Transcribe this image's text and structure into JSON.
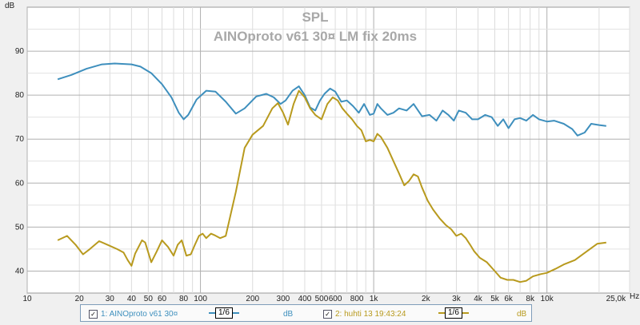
{
  "chart_data": {
    "type": "line",
    "title": "SPL",
    "subtitle": "AINOproto v61 30¤ LM fix 20ms",
    "ylabel": "dB",
    "xunit": "Hz",
    "xscale": "log",
    "xlim": [
      10,
      30000
    ],
    "ylim": [
      35,
      100
    ],
    "grid": true,
    "yticks": [
      "40",
      "50",
      "60",
      "70",
      "80",
      "90"
    ],
    "xticks": [
      {
        "v": 10,
        "label": "10"
      },
      {
        "v": 20,
        "label": "20"
      },
      {
        "v": 30,
        "label": "30"
      },
      {
        "v": 40,
        "label": "40"
      },
      {
        "v": 50,
        "label": "50"
      },
      {
        "v": 60,
        "label": "60"
      },
      {
        "v": 80,
        "label": "80"
      },
      {
        "v": 100,
        "label": "100"
      },
      {
        "v": 200,
        "label": "200"
      },
      {
        "v": 300,
        "label": "300"
      },
      {
        "v": 400,
        "label": "400"
      },
      {
        "v": 500,
        "label": "500"
      },
      {
        "v": 600,
        "label": "600"
      },
      {
        "v": 800,
        "label": "800"
      },
      {
        "v": 1000,
        "label": "1k"
      },
      {
        "v": 2000,
        "label": "2k"
      },
      {
        "v": 3000,
        "label": "3k"
      },
      {
        "v": 4000,
        "label": "4k"
      },
      {
        "v": 5000,
        "label": "5k"
      },
      {
        "v": 6000,
        "label": "6k"
      },
      {
        "v": 8000,
        "label": "8k"
      },
      {
        "v": 10000,
        "label": "10k"
      },
      {
        "v": 25000,
        "label": "25,0k"
      }
    ],
    "series": [
      {
        "name": "1: AINOproto v61 30¤",
        "color": "#3e8fbd",
        "points": [
          [
            15,
            83.6
          ],
          [
            18,
            84.6
          ],
          [
            22,
            86
          ],
          [
            27,
            87
          ],
          [
            32,
            87.2
          ],
          [
            40,
            87
          ],
          [
            45,
            86.5
          ],
          [
            52,
            85
          ],
          [
            60,
            82.5
          ],
          [
            68,
            79.5
          ],
          [
            75,
            76
          ],
          [
            80,
            74.5
          ],
          [
            85,
            75.5
          ],
          [
            95,
            79
          ],
          [
            108,
            81
          ],
          [
            122,
            80.8
          ],
          [
            140,
            78.5
          ],
          [
            160,
            75.8
          ],
          [
            180,
            77
          ],
          [
            210,
            79.7
          ],
          [
            240,
            80.3
          ],
          [
            265,
            79.5
          ],
          [
            290,
            78
          ],
          [
            310,
            78.8
          ],
          [
            340,
            81
          ],
          [
            370,
            82
          ],
          [
            400,
            80
          ],
          [
            430,
            77.2
          ],
          [
            460,
            76.5
          ],
          [
            490,
            78.8
          ],
          [
            520,
            80.3
          ],
          [
            560,
            81.5
          ],
          [
            600,
            80.8
          ],
          [
            650,
            78.5
          ],
          [
            700,
            78.8
          ],
          [
            760,
            77.5
          ],
          [
            820,
            76
          ],
          [
            880,
            78
          ],
          [
            950,
            75.5
          ],
          [
            1000,
            75.8
          ],
          [
            1050,
            78
          ],
          [
            1100,
            77
          ],
          [
            1200,
            75.5
          ],
          [
            1300,
            76
          ],
          [
            1400,
            77
          ],
          [
            1550,
            76.5
          ],
          [
            1700,
            78
          ],
          [
            1900,
            75.2
          ],
          [
            2100,
            75.5
          ],
          [
            2300,
            74.2
          ],
          [
            2500,
            76.5
          ],
          [
            2700,
            75.5
          ],
          [
            2900,
            74.2
          ],
          [
            3100,
            76.5
          ],
          [
            3400,
            76
          ],
          [
            3700,
            74.5
          ],
          [
            4000,
            74.5
          ],
          [
            4400,
            75.5
          ],
          [
            4800,
            75
          ],
          [
            5200,
            73
          ],
          [
            5600,
            74.5
          ],
          [
            6000,
            72.5
          ],
          [
            6500,
            74.5
          ],
          [
            7000,
            74.8
          ],
          [
            7600,
            74.2
          ],
          [
            8300,
            75.5
          ],
          [
            9000,
            74.5
          ],
          [
            10000,
            74
          ],
          [
            11000,
            74.2
          ],
          [
            12500,
            73.5
          ],
          [
            14000,
            72.3
          ],
          [
            15000,
            70.8
          ],
          [
            16500,
            71.5
          ],
          [
            18000,
            73.5
          ],
          [
            20000,
            73.2
          ],
          [
            22000,
            73
          ]
        ]
      },
      {
        "name": "2: huhti 13 19:43:24",
        "color": "#b89a1e",
        "points": [
          [
            15,
            47
          ],
          [
            17,
            48
          ],
          [
            19,
            46
          ],
          [
            21,
            43.8
          ],
          [
            23,
            45
          ],
          [
            26,
            46.8
          ],
          [
            29,
            46
          ],
          [
            33,
            45
          ],
          [
            36,
            44.2
          ],
          [
            38,
            42.5
          ],
          [
            40,
            41.2
          ],
          [
            42,
            44
          ],
          [
            46,
            47
          ],
          [
            48,
            46.5
          ],
          [
            52,
            42
          ],
          [
            56,
            44.5
          ],
          [
            60,
            47
          ],
          [
            65,
            45.5
          ],
          [
            70,
            43.5
          ],
          [
            74,
            46
          ],
          [
            78,
            47
          ],
          [
            83,
            43.5
          ],
          [
            88,
            43.8
          ],
          [
            93,
            46
          ],
          [
            98,
            48
          ],
          [
            103,
            48.5
          ],
          [
            108,
            47.5
          ],
          [
            115,
            48.5
          ],
          [
            120,
            48.2
          ],
          [
            130,
            47.5
          ],
          [
            140,
            48
          ],
          [
            160,
            58
          ],
          [
            180,
            68
          ],
          [
            200,
            71
          ],
          [
            230,
            73
          ],
          [
            260,
            77
          ],
          [
            280,
            78.2
          ],
          [
            300,
            76
          ],
          [
            320,
            73.3
          ],
          [
            345,
            78
          ],
          [
            370,
            81
          ],
          [
            400,
            79.5
          ],
          [
            430,
            77
          ],
          [
            460,
            75.5
          ],
          [
            500,
            74.5
          ],
          [
            540,
            78
          ],
          [
            580,
            79.5
          ],
          [
            620,
            78.8
          ],
          [
            660,
            77
          ],
          [
            700,
            75.8
          ],
          [
            750,
            74.5
          ],
          [
            800,
            73
          ],
          [
            850,
            72
          ],
          [
            900,
            69.5
          ],
          [
            950,
            69.8
          ],
          [
            1000,
            69.5
          ],
          [
            1050,
            71.2
          ],
          [
            1100,
            70.5
          ],
          [
            1200,
            68
          ],
          [
            1300,
            65
          ],
          [
            1400,
            62.2
          ],
          [
            1500,
            59.5
          ],
          [
            1600,
            60.5
          ],
          [
            1700,
            62
          ],
          [
            1800,
            61.5
          ],
          [
            1900,
            59
          ],
          [
            2050,
            56
          ],
          [
            2200,
            54
          ],
          [
            2400,
            52
          ],
          [
            2600,
            50.5
          ],
          [
            2800,
            49.5
          ],
          [
            3000,
            48
          ],
          [
            3200,
            48.5
          ],
          [
            3400,
            47.5
          ],
          [
            3600,
            46
          ],
          [
            3800,
            44.5
          ],
          [
            4100,
            43
          ],
          [
            4500,
            42
          ],
          [
            5000,
            40
          ],
          [
            5400,
            38.5
          ],
          [
            5900,
            38
          ],
          [
            6400,
            38
          ],
          [
            7000,
            37.5
          ],
          [
            7600,
            37.8
          ],
          [
            8300,
            38.8
          ],
          [
            9200,
            39.3
          ],
          [
            10000,
            39.6
          ],
          [
            11200,
            40.5
          ],
          [
            12500,
            41.5
          ],
          [
            14500,
            42.5
          ],
          [
            17000,
            44.5
          ],
          [
            19500,
            46.2
          ],
          [
            22000,
            46.5
          ]
        ]
      }
    ]
  },
  "legend": [
    {
      "check": "✓",
      "label": "1: AINOproto v61 30¤",
      "smoothing": "1/6",
      "unit": "dB",
      "color": "#3e8fbd"
    },
    {
      "check": "✓",
      "label": "2: huhti 13 19:43:24",
      "smoothing": "1/6",
      "unit": "dB",
      "color": "#b89a1e"
    }
  ]
}
